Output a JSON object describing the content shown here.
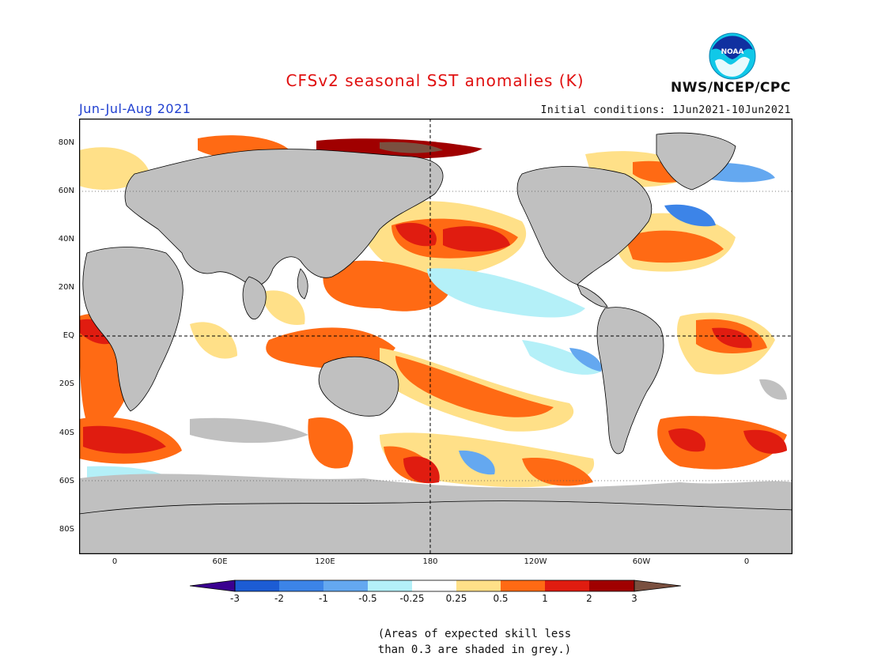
{
  "header": {
    "title": "CFSv2 seasonal SST anomalies (K)",
    "period": "Jun-Jul-Aug 2021",
    "initial_conditions": "Initial conditions: 1Jun2021-10Jun2021",
    "agency": "NWS/NCEP/CPC",
    "logo_text": "NOAA"
  },
  "map": {
    "lat_labels": [
      "80N",
      "60N",
      "40N",
      "20N",
      "EQ",
      "20S",
      "40S",
      "60S",
      "80S"
    ],
    "lon_labels": [
      "0",
      "60E",
      "120E",
      "180",
      "120W",
      "60W",
      "0"
    ],
    "land_color": "#c0c0c0",
    "grey_skill_color": "#c0c0c0"
  },
  "colorbar": {
    "labels": [
      "-3",
      "-2",
      "-1",
      "-0.5",
      "-0.25",
      "0.25",
      "0.5",
      "1",
      "2",
      "3"
    ],
    "colors": [
      "#3a0090",
      "#1c5cd4",
      "#3c84e8",
      "#64a8f0",
      "#b4f0f8",
      "#ffffff",
      "#ffe088",
      "#ff6a14",
      "#e01c10",
      "#a00000",
      "#7a5040"
    ]
  },
  "footnote": {
    "line1": "(Areas of expected skill less",
    "line2": "than 0.3 are shaded in grey.)"
  }
}
